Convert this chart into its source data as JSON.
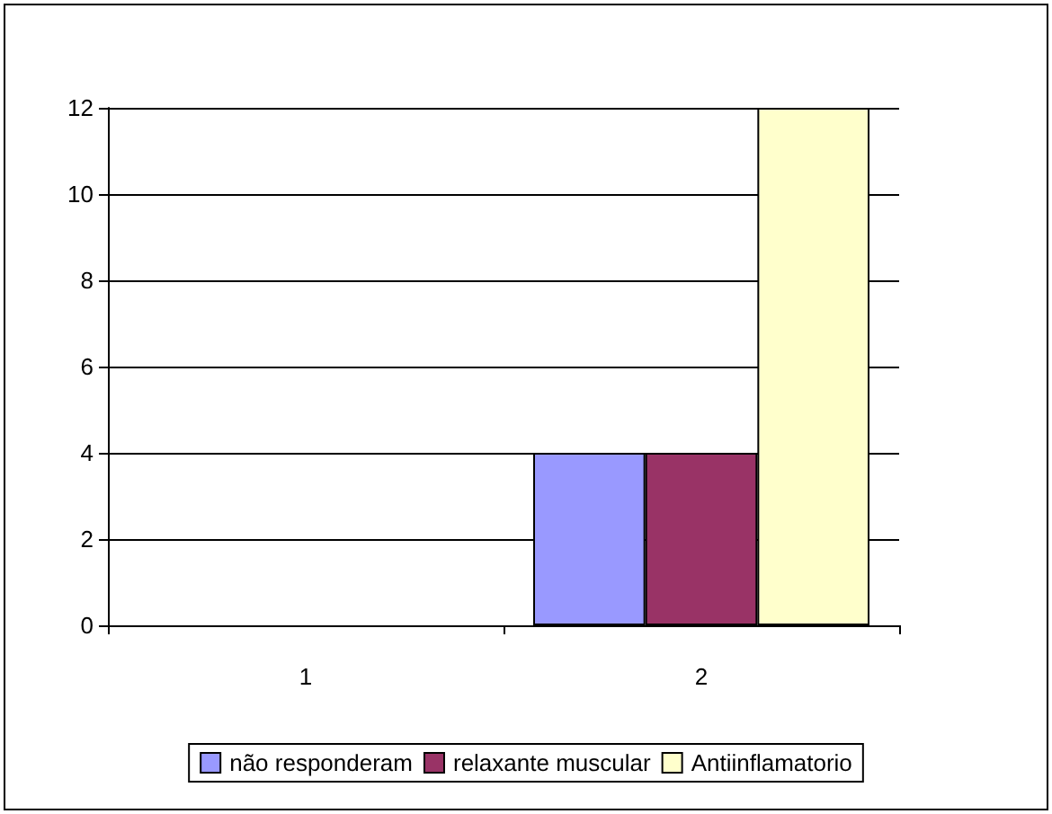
{
  "chart_data": {
    "type": "bar",
    "categories": [
      "1",
      "2"
    ],
    "series": [
      {
        "name": "não responderam",
        "color": "#9999ff",
        "values": [
          0,
          4
        ]
      },
      {
        "name": "relaxante muscular",
        "color": "#993366",
        "values": [
          0,
          4
        ]
      },
      {
        "name": "Antiinflamatorio",
        "color": "#ffffcc",
        "values": [
          0,
          12
        ]
      }
    ],
    "ylim": [
      0,
      12
    ],
    "yticks": [
      0,
      2,
      4,
      6,
      8,
      10,
      12
    ],
    "grid": "y",
    "legend": "bottom"
  }
}
